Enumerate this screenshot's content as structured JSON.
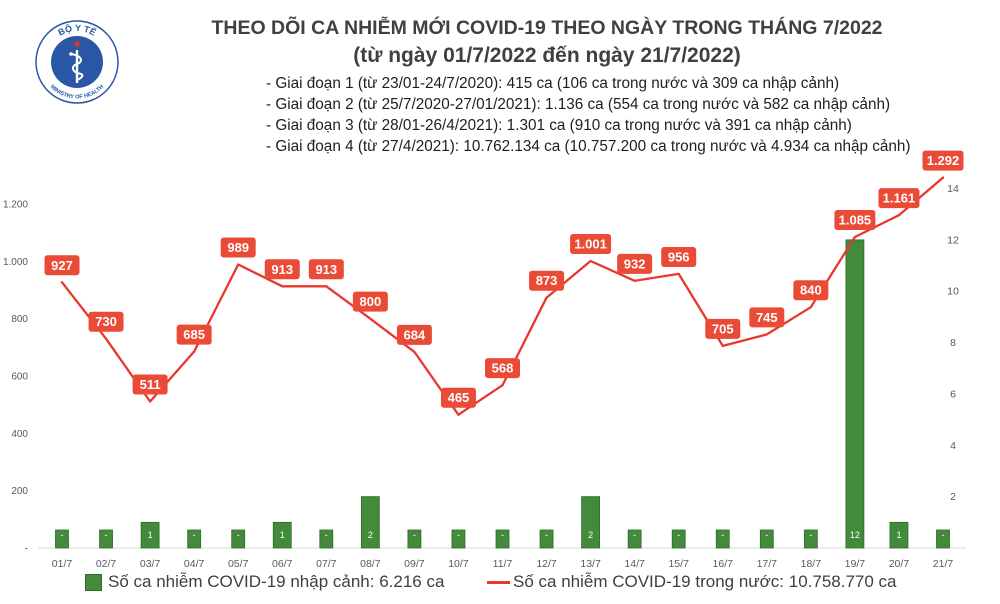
{
  "logo": {
    "top_text": "BỘ Y TẾ",
    "bottom_text": "MINISTRY OF HEALTH"
  },
  "colors": {
    "title": "#404040",
    "axis_text": "#595959",
    "axis_line": "#d9d9d9",
    "bar_edge": "#2f6b2b",
    "data_label_bg": "#ea4b37",
    "logo_blue": "#2a57a5",
    "logo_star": "#e53228"
  },
  "chart_data": {
    "type": "bar",
    "title": "THEO DÕI CA NHIỄM MỚI COVID-19 THEO NGÀY TRONG THÁNG 7/2022",
    "subtitle": "(từ ngày 01/7/2022 đến ngày 21/7/2022)",
    "annotations": [
      "- Giai đoạn 1 (từ 23/01-24/7/2020): 415 ca (106 ca trong nước và 309 ca nhập cảnh)",
      "- Giai đoạn 2 (từ 25/7/2020-27/01/2021): 1.136 ca (554 ca trong nước và 582 ca nhập cảnh)",
      "- Giai đoạn 3 (từ 28/01-26/4/2021): 1.301 ca (910 ca trong nước và 391 ca nhập cảnh)",
      "- Giai đoạn 4 (từ 27/4/2021): 10.762.134 ca (10.757.200 ca trong nước và 4.934 ca nhập cảnh)"
    ],
    "categories": [
      "01/7",
      "02/7",
      "03/7",
      "04/7",
      "05/7",
      "06/7",
      "07/7",
      "08/7",
      "09/7",
      "10/7",
      "11/7",
      "12/7",
      "13/7",
      "14/7",
      "15/7",
      "16/7",
      "17/7",
      "18/7",
      "19/7",
      "20/7",
      "21/7"
    ],
    "series": [
      {
        "name": "Số ca nhiễm COVID-19 nhập cảnh: 6.216 ca",
        "type": "bar",
        "axis": "right",
        "color": "#438a3b",
        "values": [
          0,
          0,
          1,
          0,
          0,
          1,
          0,
          2,
          0,
          0,
          0,
          0,
          2,
          0,
          0,
          0,
          0,
          0,
          12,
          1,
          0
        ],
        "labels": [
          "-",
          "-",
          "1",
          "-",
          "-",
          "1",
          "-",
          "2",
          "-",
          "-",
          "-",
          "-",
          "2",
          "-",
          "-",
          "-",
          "-",
          "-",
          "12",
          "1",
          "-"
        ]
      },
      {
        "name": "Số ca nhiễm COVID-19 trong nước: 10.758.770 ca",
        "type": "line",
        "axis": "left",
        "color": "#e8372c",
        "values": [
          927,
          730,
          511,
          685,
          989,
          913,
          913,
          800,
          684,
          465,
          568,
          873,
          1001,
          932,
          956,
          705,
          745,
          840,
          1085,
          1161,
          1292
        ],
        "labels": [
          "927",
          "730",
          "511",
          "685",
          "989",
          "913",
          "913",
          "800",
          "684",
          "465",
          "568",
          "873",
          "1.001",
          "932",
          "956",
          "705",
          "745",
          "840",
          "1.085",
          "1.161",
          "1.292"
        ]
      }
    ],
    "left_axis": {
      "range": [
        0,
        1200
      ],
      "tick_values": [
        0,
        200,
        400,
        600,
        800,
        1000,
        1200
      ],
      "tick_labels": [
        "-",
        "200",
        "400",
        "600",
        "800",
        "1.000",
        "1.200"
      ]
    },
    "right_axis": {
      "range": [
        0,
        14
      ],
      "tick_values": [
        2,
        4,
        6,
        8,
        10,
        12,
        14
      ],
      "tick_labels": [
        "2",
        "4",
        "6",
        "8",
        "10",
        "12",
        "14"
      ]
    },
    "grid": false,
    "legend_position": "bottom"
  }
}
